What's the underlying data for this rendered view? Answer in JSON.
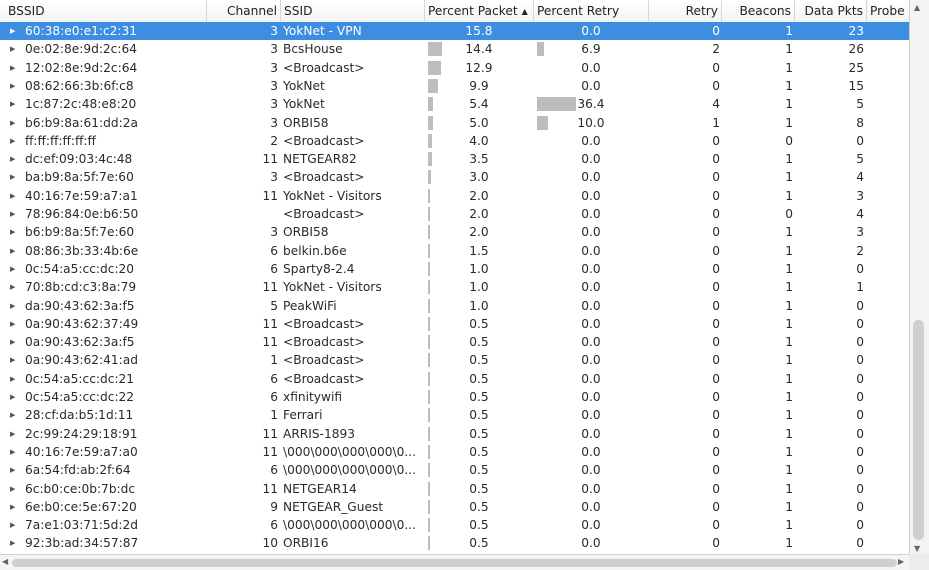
{
  "columns": {
    "bssid": "BSSID",
    "channel": "Channel",
    "ssid": "SSID",
    "percent_packet": "Percent Packet",
    "percent_retry": "Percent Retry",
    "retry": "Retry",
    "beacons": "Beacons",
    "data_pkts": "Data Pkts",
    "probe": "Probe"
  },
  "sort_icon": "▲",
  "selected_row": 0,
  "colors": {
    "selection": "#3d8ee1",
    "bar": "#bdbdbd"
  },
  "rows": [
    {
      "bssid": "60:38:e0:e1:c2:31",
      "channel": "3",
      "ssid": "YokNet - VPN",
      "pp": "15.8",
      "pr": "0.0",
      "retry": "0",
      "beacons": "1",
      "data": "23"
    },
    {
      "bssid": "0e:02:8e:9d:2c:64",
      "channel": "3",
      "ssid": "BcsHouse",
      "pp": "14.4",
      "pr": "6.9",
      "retry": "2",
      "beacons": "1",
      "data": "26"
    },
    {
      "bssid": "12:02:8e:9d:2c:64",
      "channel": "3",
      "ssid": "<Broadcast>",
      "pp": "12.9",
      "pr": "0.0",
      "retry": "0",
      "beacons": "1",
      "data": "25"
    },
    {
      "bssid": "08:62:66:3b:6f:c8",
      "channel": "3",
      "ssid": "YokNet",
      "pp": "9.9",
      "pr": "0.0",
      "retry": "0",
      "beacons": "1",
      "data": "15"
    },
    {
      "bssid": "1c:87:2c:48:e8:20",
      "channel": "3",
      "ssid": "YokNet",
      "pp": "5.4",
      "pr": "36.4",
      "retry": "4",
      "beacons": "1",
      "data": "5"
    },
    {
      "bssid": "b6:b9:8a:61:dd:2a",
      "channel": "3",
      "ssid": "ORBI58",
      "pp": "5.0",
      "pr": "10.0",
      "retry": "1",
      "beacons": "1",
      "data": "8"
    },
    {
      "bssid": "ff:ff:ff:ff:ff:ff",
      "channel": "2",
      "ssid": "<Broadcast>",
      "pp": "4.0",
      "pr": "0.0",
      "retry": "0",
      "beacons": "0",
      "data": "0"
    },
    {
      "bssid": "dc:ef:09:03:4c:48",
      "channel": "11",
      "ssid": "NETGEAR82",
      "pp": "3.5",
      "pr": "0.0",
      "retry": "0",
      "beacons": "1",
      "data": "5"
    },
    {
      "bssid": "ba:b9:8a:5f:7e:60",
      "channel": "3",
      "ssid": "<Broadcast>",
      "pp": "3.0",
      "pr": "0.0",
      "retry": "0",
      "beacons": "1",
      "data": "4"
    },
    {
      "bssid": "40:16:7e:59:a7:a1",
      "channel": "11",
      "ssid": "YokNet - Visitors",
      "pp": "2.0",
      "pr": "0.0",
      "retry": "0",
      "beacons": "1",
      "data": "3"
    },
    {
      "bssid": "78:96:84:0e:b6:50",
      "channel": "",
      "ssid": "<Broadcast>",
      "pp": "2.0",
      "pr": "0.0",
      "retry": "0",
      "beacons": "0",
      "data": "4"
    },
    {
      "bssid": "b6:b9:8a:5f:7e:60",
      "channel": "3",
      "ssid": "ORBI58",
      "pp": "2.0",
      "pr": "0.0",
      "retry": "0",
      "beacons": "1",
      "data": "3"
    },
    {
      "bssid": "08:86:3b:33:4b:6e",
      "channel": "6",
      "ssid": "belkin.b6e",
      "pp": "1.5",
      "pr": "0.0",
      "retry": "0",
      "beacons": "1",
      "data": "2"
    },
    {
      "bssid": "0c:54:a5:cc:dc:20",
      "channel": "6",
      "ssid": "Sparty8-2.4",
      "pp": "1.0",
      "pr": "0.0",
      "retry": "0",
      "beacons": "1",
      "data": "0"
    },
    {
      "bssid": "70:8b:cd:c3:8a:79",
      "channel": "11",
      "ssid": "YokNet - Visitors",
      "pp": "1.0",
      "pr": "0.0",
      "retry": "0",
      "beacons": "1",
      "data": "1"
    },
    {
      "bssid": "da:90:43:62:3a:f5",
      "channel": "5",
      "ssid": "PeakWiFi",
      "pp": "1.0",
      "pr": "0.0",
      "retry": "0",
      "beacons": "1",
      "data": "0"
    },
    {
      "bssid": "0a:90:43:62:37:49",
      "channel": "11",
      "ssid": "<Broadcast>",
      "pp": "0.5",
      "pr": "0.0",
      "retry": "0",
      "beacons": "1",
      "data": "0"
    },
    {
      "bssid": "0a:90:43:62:3a:f5",
      "channel": "11",
      "ssid": "<Broadcast>",
      "pp": "0.5",
      "pr": "0.0",
      "retry": "0",
      "beacons": "1",
      "data": "0"
    },
    {
      "bssid": "0a:90:43:62:41:ad",
      "channel": "1",
      "ssid": "<Broadcast>",
      "pp": "0.5",
      "pr": "0.0",
      "retry": "0",
      "beacons": "1",
      "data": "0"
    },
    {
      "bssid": "0c:54:a5:cc:dc:21",
      "channel": "6",
      "ssid": "<Broadcast>",
      "pp": "0.5",
      "pr": "0.0",
      "retry": "0",
      "beacons": "1",
      "data": "0"
    },
    {
      "bssid": "0c:54:a5:cc:dc:22",
      "channel": "6",
      "ssid": "xfinitywifi",
      "pp": "0.5",
      "pr": "0.0",
      "retry": "0",
      "beacons": "1",
      "data": "0"
    },
    {
      "bssid": "28:cf:da:b5:1d:11",
      "channel": "1",
      "ssid": "Ferrari",
      "pp": "0.5",
      "pr": "0.0",
      "retry": "0",
      "beacons": "1",
      "data": "0"
    },
    {
      "bssid": "2c:99:24:29:18:91",
      "channel": "11",
      "ssid": "ARRIS-1893",
      "pp": "0.5",
      "pr": "0.0",
      "retry": "0",
      "beacons": "1",
      "data": "0"
    },
    {
      "bssid": "40:16:7e:59:a7:a0",
      "channel": "11",
      "ssid": "\\000\\000\\000\\000\\0...",
      "pp": "0.5",
      "pr": "0.0",
      "retry": "0",
      "beacons": "1",
      "data": "0"
    },
    {
      "bssid": "6a:54:fd:ab:2f:64",
      "channel": "6",
      "ssid": "\\000\\000\\000\\000\\0...",
      "pp": "0.5",
      "pr": "0.0",
      "retry": "0",
      "beacons": "1",
      "data": "0"
    },
    {
      "bssid": "6c:b0:ce:0b:7b:dc",
      "channel": "11",
      "ssid": "NETGEAR14",
      "pp": "0.5",
      "pr": "0.0",
      "retry": "0",
      "beacons": "1",
      "data": "0"
    },
    {
      "bssid": "6e:b0:ce:5e:67:20",
      "channel": "9",
      "ssid": "NETGEAR_Guest",
      "pp": "0.5",
      "pr": "0.0",
      "retry": "0",
      "beacons": "1",
      "data": "0"
    },
    {
      "bssid": "7a:e1:03:71:5d:2d",
      "channel": "6",
      "ssid": "\\000\\000\\000\\000\\0...",
      "pp": "0.5",
      "pr": "0.0",
      "retry": "0",
      "beacons": "1",
      "data": "0"
    },
    {
      "bssid": "92:3b:ad:34:57:87",
      "channel": "10",
      "ssid": "ORBI16",
      "pp": "0.5",
      "pr": "0.0",
      "retry": "0",
      "beacons": "1",
      "data": "0"
    }
  ]
}
